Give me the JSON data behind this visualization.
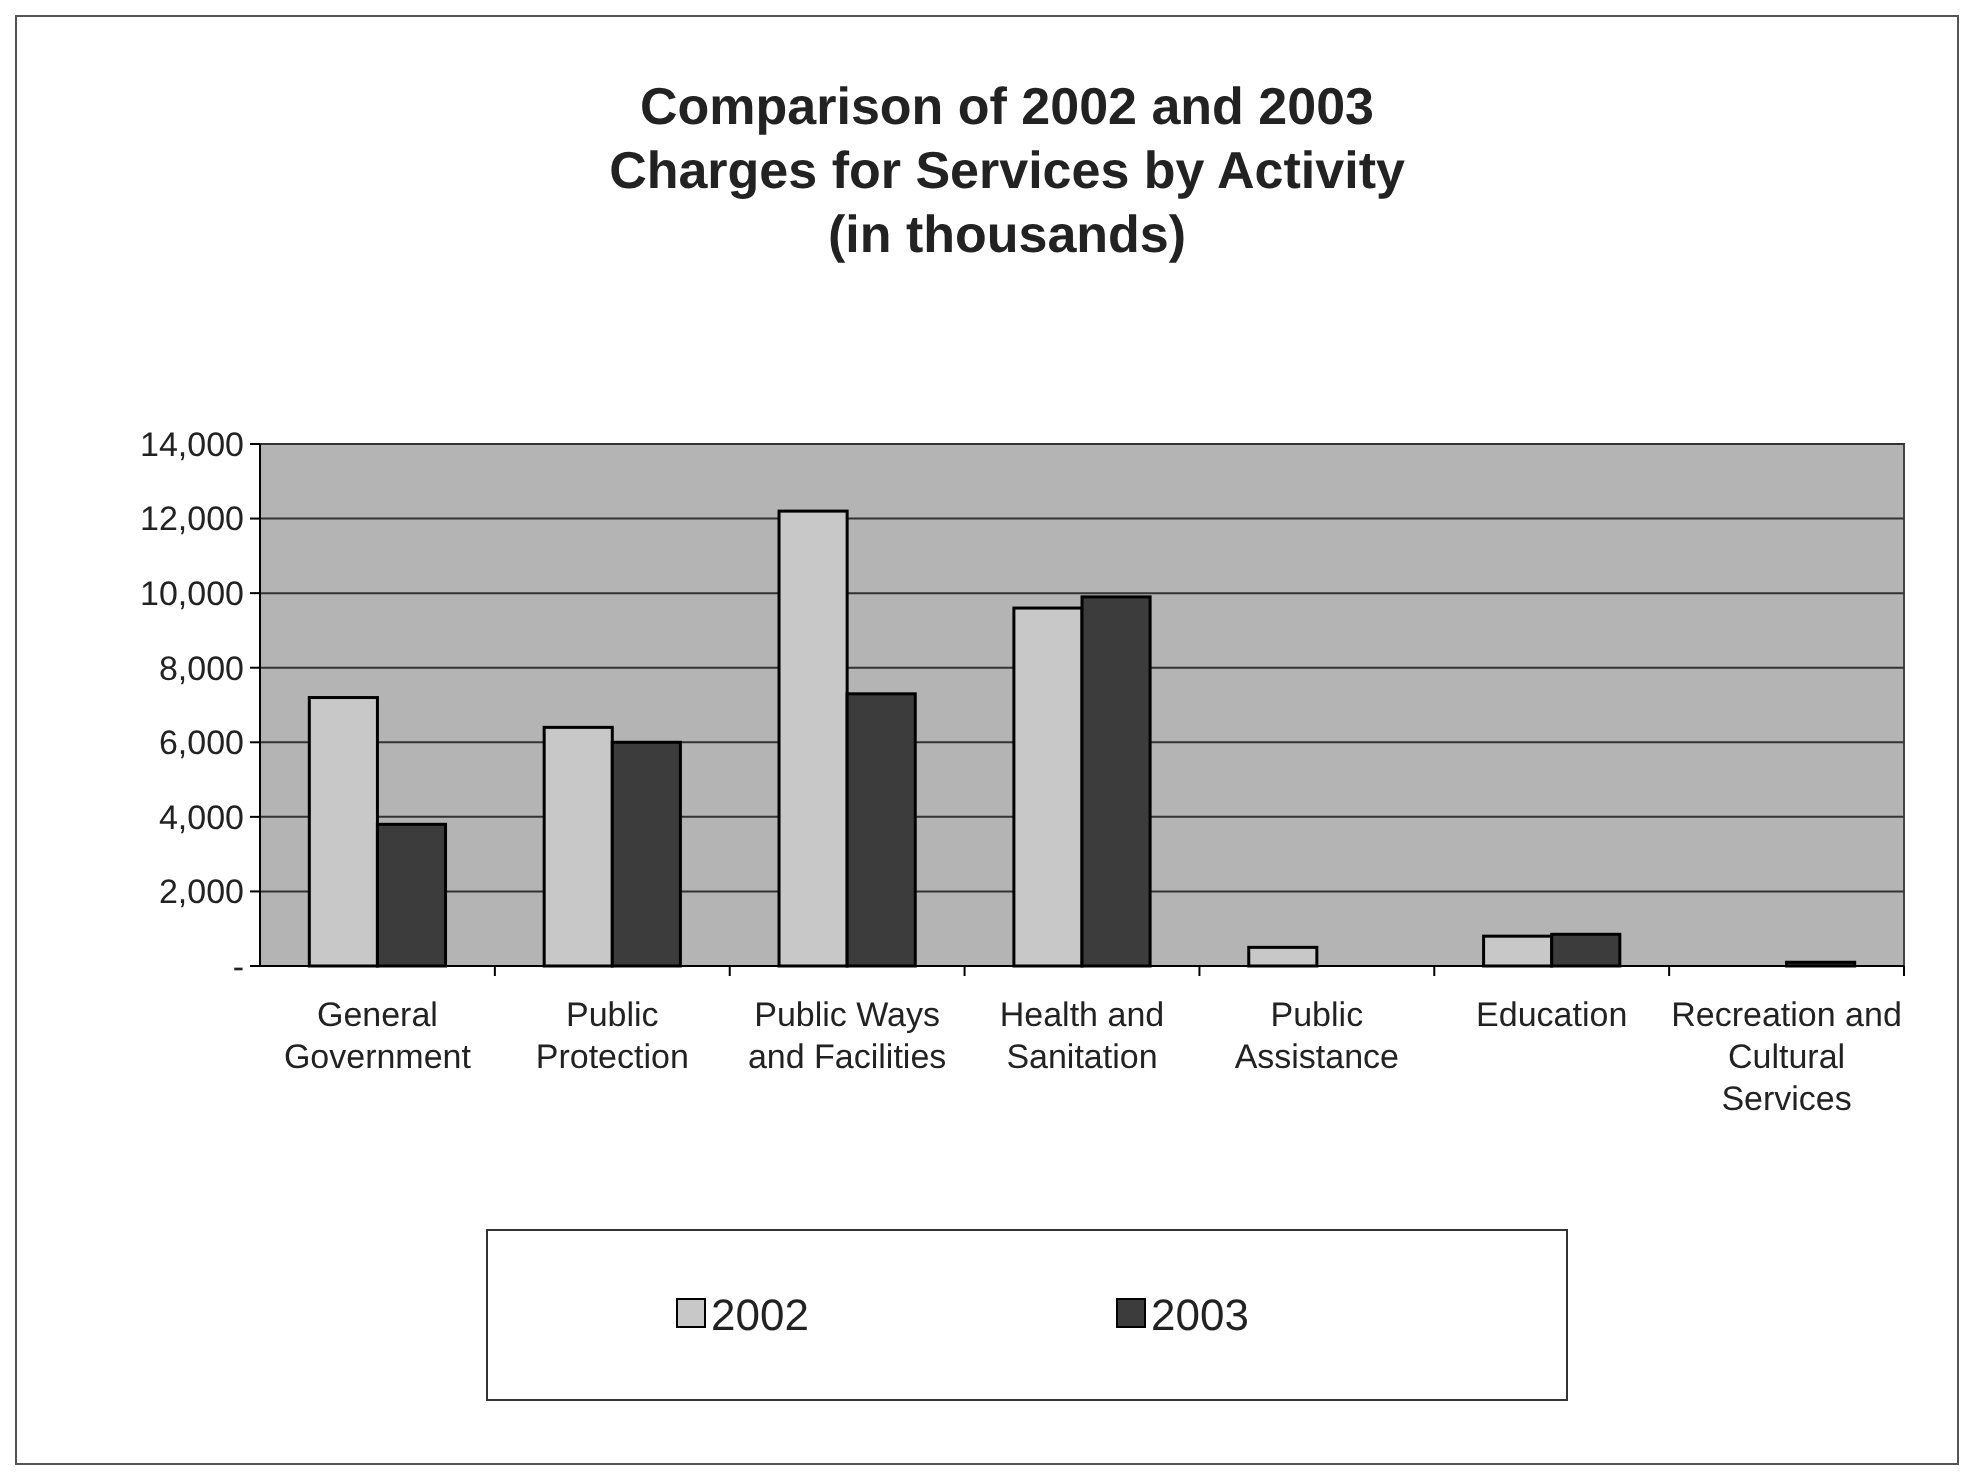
{
  "chart_data": {
    "type": "bar",
    "title": "Comparison of 2002 and 2003\nCharges for Services by Activity\n(in thousands)",
    "categories": [
      "General Government",
      "Public Protection",
      "Public Ways and Facilities",
      "Health and Sanitation",
      "Public Assistance",
      "Education",
      "Recreation and Cultural Services"
    ],
    "series": [
      {
        "name": "2002",
        "color": "#c8c8c8",
        "values": [
          7200,
          6400,
          12200,
          9600,
          500,
          800,
          0
        ]
      },
      {
        "name": "2003",
        "color": "#3c3c3c",
        "values": [
          3800,
          6000,
          7300,
          9900,
          0,
          850,
          100
        ]
      }
    ],
    "ylim": [
      0,
      14000
    ],
    "yticks": [
      {
        "value": 0,
        "label": "-"
      },
      {
        "value": 2000,
        "label": "2,000"
      },
      {
        "value": 4000,
        "label": "4,000"
      },
      {
        "value": 6000,
        "label": "6,000"
      },
      {
        "value": 8000,
        "label": "8,000"
      },
      {
        "value": 10000,
        "label": "10,000"
      },
      {
        "value": 12000,
        "label": "12,000"
      },
      {
        "value": 14000,
        "label": "14,000"
      }
    ],
    "grid": "y",
    "legend": "bottom"
  }
}
